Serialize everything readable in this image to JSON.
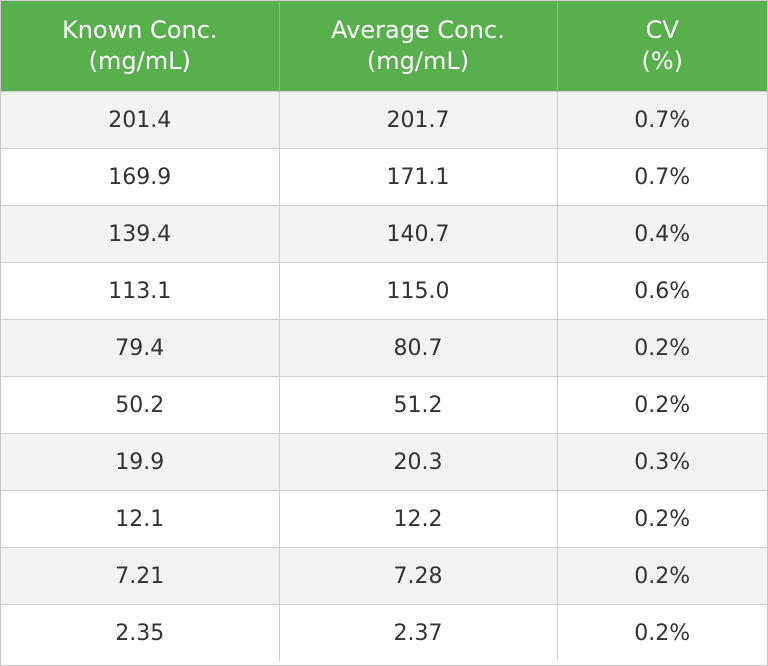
{
  "table": {
    "header_color": "#58b04c",
    "columns": [
      {
        "line1": "Known Conc.",
        "line2": "(mg/mL)"
      },
      {
        "line1": "Average Conc.",
        "line2": "(mg/mL)"
      },
      {
        "line1": "CV",
        "line2": "(%)"
      }
    ],
    "rows": [
      [
        "201.4",
        "201.7",
        "0.7%"
      ],
      [
        "169.9",
        "171.1",
        "0.7%"
      ],
      [
        "139.4",
        "140.7",
        "0.4%"
      ],
      [
        "113.1",
        "115.0",
        "0.6%"
      ],
      [
        "79.4",
        "80.7",
        "0.2%"
      ],
      [
        "50.2",
        "51.2",
        "0.2%"
      ],
      [
        "19.9",
        "20.3",
        "0.3%"
      ],
      [
        "12.1",
        "12.2",
        "0.2%"
      ],
      [
        "7.21",
        "7.28",
        "0.2%"
      ],
      [
        "2.35",
        "2.37",
        "0.2%"
      ]
    ]
  }
}
